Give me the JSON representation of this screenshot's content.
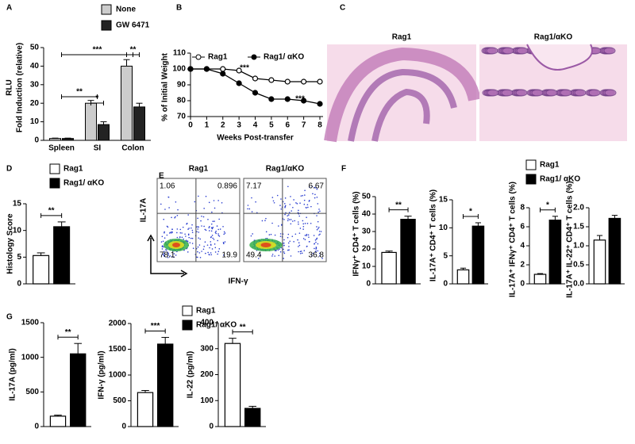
{
  "chart_data": [
    {
      "label": "A",
      "type": "bar",
      "categories": [
        "Spleen",
        "SI",
        "Colon"
      ],
      "series": [
        {
          "name": "None",
          "color": "#cccccc",
          "values": [
            1,
            20,
            40
          ],
          "errors": [
            0.2,
            1.5,
            3.5
          ]
        },
        {
          "name": "GW 6471",
          "color": "#222222",
          "values": [
            1,
            8.5,
            18
          ],
          "errors": [
            0.2,
            1.5,
            2
          ]
        }
      ],
      "ylim": [
        0,
        50
      ],
      "yticks": [
        0,
        10,
        20,
        30,
        40,
        50
      ],
      "y_label": [
        "RLU",
        "Fold Induction (relative)"
      ],
      "annotations": [
        "***",
        "**",
        "*",
        "**"
      ]
    },
    {
      "label": "B",
      "type": "line",
      "x": [
        0,
        1,
        2,
        3,
        4,
        5,
        6,
        7,
        8
      ],
      "series": [
        {
          "name": "Rag1",
          "color": "#000000",
          "marker": "open",
          "values": [
            100,
            100,
            100,
            99,
            94,
            93,
            92,
            92,
            92
          ],
          "errors": [
            0,
            0,
            0.5,
            0.8,
            1,
            1,
            1.2,
            1.5,
            1.5
          ]
        },
        {
          "name": "Rag1/ αKO",
          "color": "#000000",
          "marker": "filled",
          "values": [
            100,
            100,
            97,
            91,
            85,
            81,
            81,
            80,
            78
          ],
          "errors": [
            0,
            0,
            0.8,
            1.5,
            1.5,
            1.5,
            1.5,
            1.5,
            1.5
          ]
        }
      ],
      "xlim": [
        0,
        8
      ],
      "xticks": [
        0,
        1,
        2,
        3,
        4,
        5,
        6,
        7,
        8
      ],
      "ylim": [
        70,
        110
      ],
      "yticks": [
        70,
        80,
        90,
        100,
        110
      ],
      "x_label": "Weeks Post-transfer",
      "y_label": "% of Initial Weight",
      "annotations": [
        "***",
        "***"
      ]
    },
    {
      "label": "C",
      "type": "histology",
      "titles": [
        "Rag1",
        "Rag1/αKO"
      ]
    },
    {
      "label": "D",
      "type": "bar",
      "series": [
        {
          "name": "Rag1",
          "color": "#ffffff"
        },
        {
          "name": "Rag1/ αKO",
          "color": "#000000"
        }
      ],
      "panels": [
        {
          "y_label": "Histology Score",
          "ylim": [
            0,
            15
          ],
          "yticks": [
            0,
            5,
            10,
            15
          ],
          "values": [
            5.3,
            10.7
          ],
          "errors": [
            0.5,
            0.9
          ],
          "annotations": [
            "**"
          ]
        }
      ]
    },
    {
      "label": "E",
      "type": "flow",
      "x_label": "IFN-γ",
      "y_label": "IL-17A",
      "plots": [
        {
          "title": "Rag1",
          "quadrants": [
            1.06,
            0.896,
            78.1,
            19.9
          ]
        },
        {
          "title": "Rag1/αKO",
          "quadrants": [
            7.17,
            6.67,
            49.4,
            36.8
          ]
        }
      ]
    },
    {
      "label": "F",
      "type": "bar",
      "series": [
        {
          "name": "Rag1",
          "color": "#ffffff"
        },
        {
          "name": "Rag1/ αKO",
          "color": "#000000"
        }
      ],
      "panels": [
        {
          "y_label": "IFNγ⁺ CD4⁺ T cells (%)",
          "ylim": [
            0,
            50
          ],
          "yticks": [
            0,
            10,
            20,
            30,
            40,
            50
          ],
          "values": [
            18,
            37
          ],
          "errors": [
            0.8,
            1.8
          ],
          "annotations": [
            "**"
          ]
        },
        {
          "y_label": "IL-17A⁺ CD4⁺ T cells (%)",
          "ylim": [
            0,
            15
          ],
          "yticks": [
            0,
            5,
            10,
            15
          ],
          "values": [
            2.5,
            10.3
          ],
          "errors": [
            0.3,
            0.6
          ],
          "annotations": [
            "*"
          ]
        },
        {
          "y_label": "IL-17A⁺ IFNγ⁺ CD4⁺ T cells (%)",
          "ylim": [
            0,
            8
          ],
          "yticks": [
            0,
            2,
            4,
            6,
            8
          ],
          "values": [
            1.0,
            6.7
          ],
          "errors": [
            0.08,
            0.4
          ],
          "annotations": [
            "*"
          ]
        },
        {
          "y_label": "IL-17A⁺ IL-22⁺ CD4⁺ T cells (%)",
          "ylim": [
            0,
            2
          ],
          "yticks": [
            {
              "value": 0,
              "label": "0.0"
            },
            0.5,
            {
              "value": 1,
              "label": "1.0"
            },
            1.5,
            {
              "value": 2,
              "label": "2.0"
            }
          ],
          "values": [
            1.15,
            1.72
          ],
          "errors": [
            0.12,
            0.08
          ]
        }
      ]
    },
    {
      "label": "G",
      "type": "bar",
      "series": [
        {
          "name": "Rag1",
          "color": "#ffffff"
        },
        {
          "name": "Rag1/ αKO",
          "color": "#000000"
        }
      ],
      "panels": [
        {
          "y_label": "IL-17A (pg/ml)",
          "ylim": [
            0,
            1500
          ],
          "yticks": [
            0,
            500,
            1000,
            1500
          ],
          "values": [
            150,
            1050
          ],
          "errors": [
            15,
            150
          ],
          "annotations": [
            "**"
          ]
        },
        {
          "y_label": "IFN-γ (pg/ml)",
          "ylim": [
            0,
            2000
          ],
          "yticks": [
            0,
            500,
            1000,
            1500,
            2000
          ],
          "values": [
            660,
            1600
          ],
          "errors": [
            40,
            130
          ],
          "annotations": [
            "***"
          ]
        },
        {
          "y_label": "IL-22 (pg/ml)",
          "ylim": [
            0,
            400
          ],
          "yticks": [
            0,
            100,
            200,
            300,
            400
          ],
          "values": [
            320,
            70
          ],
          "errors": [
            20,
            8
          ],
          "annotations": [
            "**"
          ]
        }
      ]
    }
  ]
}
